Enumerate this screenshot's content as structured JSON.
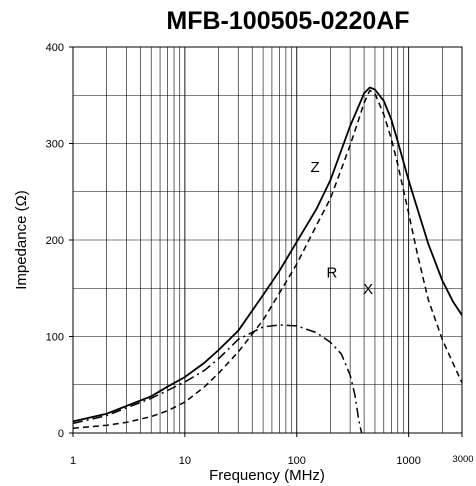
{
  "chart_data": {
    "type": "line",
    "title": "MFB-100505-0220AF",
    "xlabel": "Frequency (MHz)",
    "ylabel": "Impedance (Ω)",
    "x_scale": "log",
    "xlim": [
      1,
      3000
    ],
    "ylim": [
      0,
      400
    ],
    "x_tick_labels": [
      "1",
      "10",
      "100",
      "1000",
      "3000"
    ],
    "x_ticks": [
      1,
      10,
      100,
      1000,
      3000
    ],
    "y_tick_labels": [
      "0",
      "100",
      "200",
      "300",
      "400"
    ],
    "y_ticks": [
      0,
      100,
      200,
      300,
      400
    ],
    "grid": true,
    "series": [
      {
        "name": "Z",
        "style": "solid",
        "x": [
          1,
          2,
          3,
          5,
          7,
          10,
          15,
          20,
          30,
          50,
          70,
          100,
          150,
          200,
          300,
          400,
          450,
          500,
          600,
          700,
          800,
          1000,
          1200,
          1500,
          2000,
          2500,
          3000
        ],
        "y": [
          12,
          20,
          28,
          38,
          48,
          58,
          73,
          86,
          106,
          143,
          168,
          198,
          232,
          262,
          318,
          352,
          358,
          356,
          344,
          325,
          302,
          262,
          232,
          196,
          158,
          136,
          122
        ]
      },
      {
        "name": "R",
        "style": "dash",
        "x": [
          1,
          2,
          3,
          5,
          7,
          10,
          15,
          20,
          30,
          50,
          70,
          100,
          150,
          200,
          300,
          400,
          450,
          500,
          600,
          700,
          800,
          1000,
          1200,
          1500,
          2000,
          2500,
          3000
        ],
        "y": [
          5,
          8,
          11,
          17,
          23,
          32,
          48,
          62,
          84,
          117,
          145,
          175,
          215,
          243,
          298,
          342,
          355,
          352,
          330,
          305,
          278,
          228,
          185,
          138,
          97,
          72,
          52
        ]
      },
      {
        "name": "X",
        "style": "dashdot",
        "x": [
          1,
          2,
          3,
          5,
          7,
          10,
          15,
          20,
          30,
          50,
          70,
          100,
          150,
          200,
          250,
          300,
          330,
          360,
          380
        ],
        "y": [
          10,
          18,
          26,
          36,
          44,
          53,
          65,
          77,
          97,
          110,
          112,
          111,
          104,
          94,
          82,
          60,
          40,
          12,
          0
        ]
      }
    ]
  }
}
